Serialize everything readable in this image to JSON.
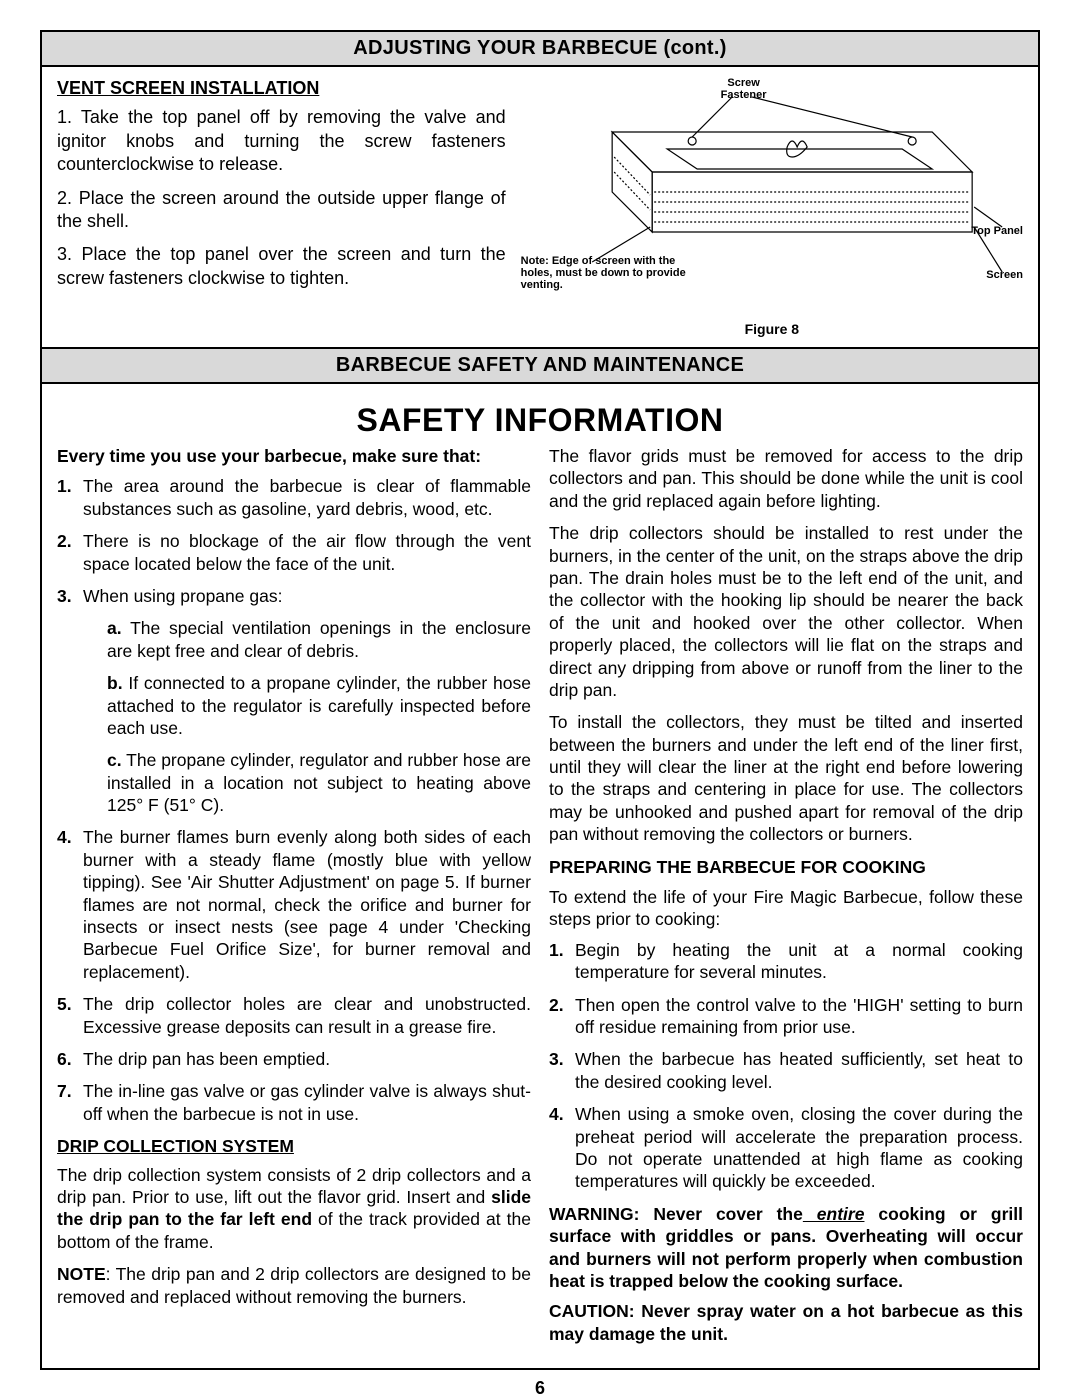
{
  "header1": "ADJUSTING YOUR BARBECUE (cont.)",
  "vent": {
    "heading": "VENT SCREEN INSTALLATION",
    "s1": "1. Take the top panel off by removing the valve and ignitor knobs and turning the screw fasteners counterclockwise to release.",
    "s2": "2. Place the screen around the outside upper flange of the shell.",
    "s3": "3. Place the top panel over the screen and turn the screw fasteners clockwise to tighten."
  },
  "diagram": {
    "label_screw": "Screw\nFastener",
    "label_toppanel": "Top Panel",
    "label_screen": "Screen",
    "note": "Note: Edge of screen with the holes, must be down to provide venting.",
    "caption": "Figure 8"
  },
  "header2": "BARBECUE SAFETY AND MAINTENANCE",
  "safety_title": "SAFETY INFORMATION",
  "left": {
    "lead": "Every time you use your barbecue, make sure that:",
    "l1": "The area around the barbecue is clear of flammable substances such as gasoline, yard debris, wood, etc.",
    "l2": "There is no blockage of the air flow through the vent space located below the face of the unit.",
    "l3": "When using propane gas:",
    "l3a": "a. The special ventilation openings in the enclosure are kept free and clear of debris.",
    "l3b": "b. If connected to a propane cylinder, the rubber hose attached to the regulator is carefully inspected before each use.",
    "l3c": "c. The propane cylinder, regulator and rubber hose are installed in a location not subject to heating above 125° F (51° C).",
    "l4": "The burner flames burn evenly along both sides of each burner with a steady flame (mostly blue with yellow tipping). See 'Air Shutter Adjustment' on page 5. If burner flames are not normal, check the orifice and burner for insects or insect nests (see page 4 under 'Checking Barbecue Fuel Orifice Size', for burner removal and replacement).",
    "l5": "The drip collector holes are clear and unobstructed. Excessive grease deposits  can result in a grease fire.",
    "l6": "The drip pan has been emptied.",
    "l7": "The in-line gas valve or gas cylinder valve is always shut-off when the barbecue is not in use.",
    "drip_heading": "DRIP COLLECTION SYSTEM",
    "drip_p1a": "The  drip collection system consists of 2 drip collectors and a drip pan. Prior to use, lift out the flavor grid. Insert and ",
    "drip_p1b": "slide the drip pan to the far left end",
    "drip_p1c": " of the track provided at the bottom of the frame.",
    "drip_note_label": "NOTE",
    "drip_note_txt": ": The drip pan and 2 drip collectors are designed to be removed and replaced without removing the burners."
  },
  "right": {
    "p1": "The flavor grids must be removed for access to the drip collectors and pan. This should be done while the unit is cool and the grid replaced again before lighting.",
    "p2": "The drip collectors should be installed to rest under the burners, in the center of the unit, on the straps above the drip pan. The drain holes must be to the left end of the unit, and the collector with the hooking lip should be nearer  the back of the unit and hooked over the other collector. When properly placed, the  collectors will lie flat on the straps and direct any dripping from above or runoff from the liner to the drip pan.",
    "p3": "To install the collectors, they must be tilted and inserted between the burners and under the left end of the liner first, until they will clear the liner at the right end before lowering to the straps and centering in place for use. The collectors may be unhooked and pushed apart for removal of the drip pan without removing the collectors or burners.",
    "prep_heading": "PREPARING THE BARBECUE FOR COOKING",
    "prep_lead": "To extend the life of your Fire Magic Barbecue, follow these steps prior to cooking:",
    "r1": "Begin by heating the unit at a normal cooking temperature for several minutes.",
    "r2": "Then open the control valve to the 'HIGH' setting to burn off residue remaining from prior use.",
    "r3": "When the barbecue has heated sufficiently, set heat to the desired cooking level.",
    "r4": "When using a smoke oven, closing the cover during the preheat period will accelerate the preparation process. Do not operate unattended at high flame as cooking temperatures will quickly be exceeded.",
    "warn_a": "WARNING: Never cover the",
    "warn_entire": " entire",
    "warn_b": " cooking  or grill surface with griddles or pans. Overheating will occur and burners will not perform properly when combustion heat is trapped below the cooking surface.",
    "caution": "CAUTION: Never spray water on a hot barbecue as this may damage the unit."
  },
  "page_number": "6"
}
